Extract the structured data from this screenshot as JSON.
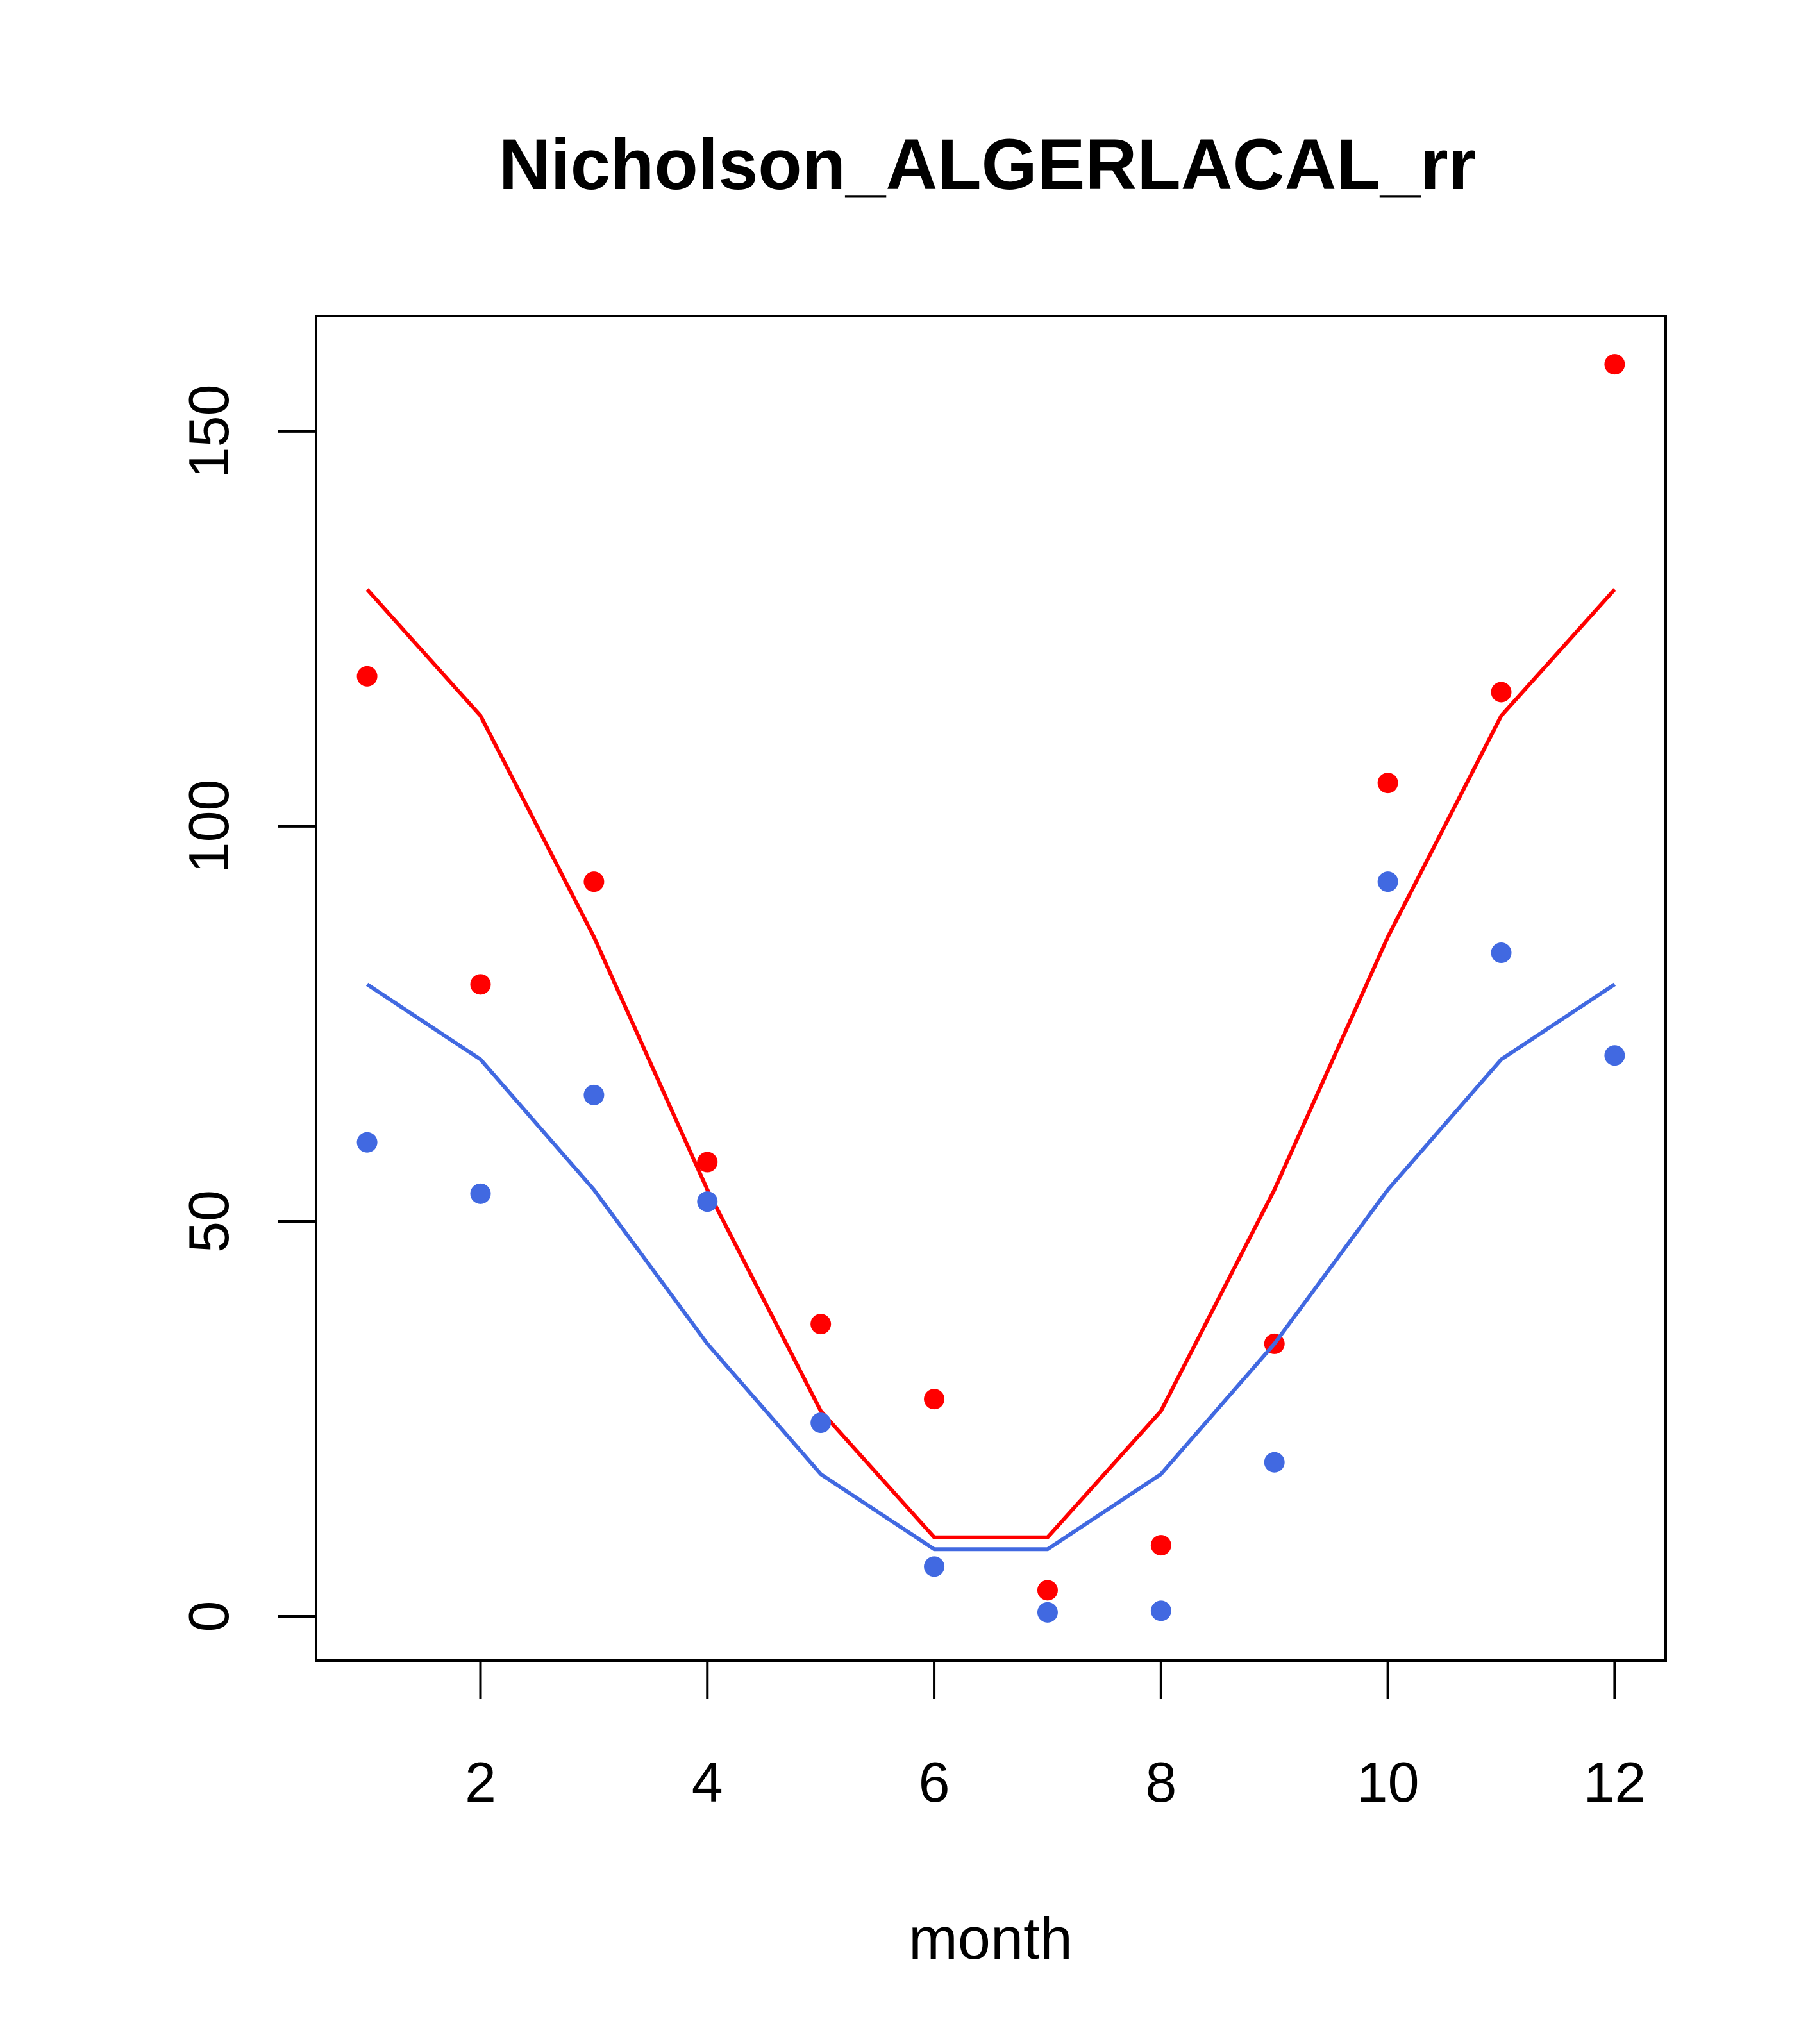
{
  "chart_data": {
    "type": "line",
    "title": "Nicholson_ALGERLACAL_rr",
    "xlabel": "month",
    "ylabel": "",
    "xlim": [
      0.55,
      12.45
    ],
    "ylim": [
      -5.6,
      164.6
    ],
    "x_ticks": [
      2,
      4,
      6,
      8,
      10,
      12
    ],
    "y_ticks": [
      0,
      50,
      100,
      150
    ],
    "x": [
      1,
      2,
      3,
      4,
      5,
      6,
      7,
      8,
      9,
      10,
      11,
      12
    ],
    "grid": false,
    "series": [
      {
        "color": "#ff0000",
        "line_values": [
          130,
          114,
          86,
          54,
          26,
          10,
          10,
          26,
          54,
          86,
          114,
          130
        ],
        "point_values": [
          119,
          80,
          93,
          57.5,
          37,
          27.5,
          3.3,
          9,
          34.5,
          105.5,
          117,
          158.5
        ]
      },
      {
        "color": "#4169e1",
        "line_values": [
          80,
          70.5,
          54,
          34.5,
          18,
          8.5,
          8.5,
          18,
          34.5,
          54,
          70.5,
          80
        ],
        "point_values": [
          60,
          53.5,
          66,
          52.5,
          24.5,
          6.3,
          0.5,
          0.7,
          19.5,
          93,
          84,
          71
        ]
      }
    ]
  }
}
